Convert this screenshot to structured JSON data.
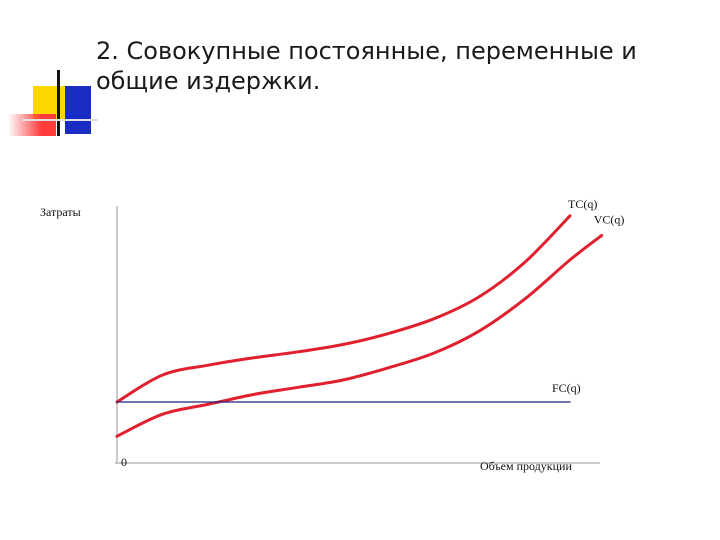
{
  "slide": {
    "title_line1": "2. Совокупные постоянные, переменные и",
    "title_line2": "общие издержки."
  },
  "colors": {
    "curve": "#e0202e",
    "fc_line": "#1a237e",
    "axis": "#b8b8b8"
  },
  "chart_data": {
    "type": "line",
    "title": "",
    "xlabel": "Объем продукции",
    "ylabel": "Затраты",
    "origin_label": "0",
    "xlim": [
      0,
      100
    ],
    "ylim": [
      0,
      100
    ],
    "grid": false,
    "series": [
      {
        "name": "TC(q)",
        "x": [
          0,
          10,
          20,
          30,
          40,
          50,
          60,
          70,
          80,
          90,
          100
        ],
        "values": [
          20,
          31,
          35,
          38,
          40.5,
          43.5,
          48,
          54,
          63,
          77,
          96
        ]
      },
      {
        "name": "VC(q)",
        "x": [
          0,
          10,
          20,
          30,
          40,
          50,
          60,
          70,
          80,
          90,
          100,
          107
        ],
        "values": [
          6,
          15,
          19,
          23,
          26,
          29,
          34,
          40,
          49,
          62,
          78,
          88
        ]
      },
      {
        "name": "FC(q)",
        "x": [
          0,
          100
        ],
        "values": [
          20,
          20
        ]
      }
    ]
  }
}
